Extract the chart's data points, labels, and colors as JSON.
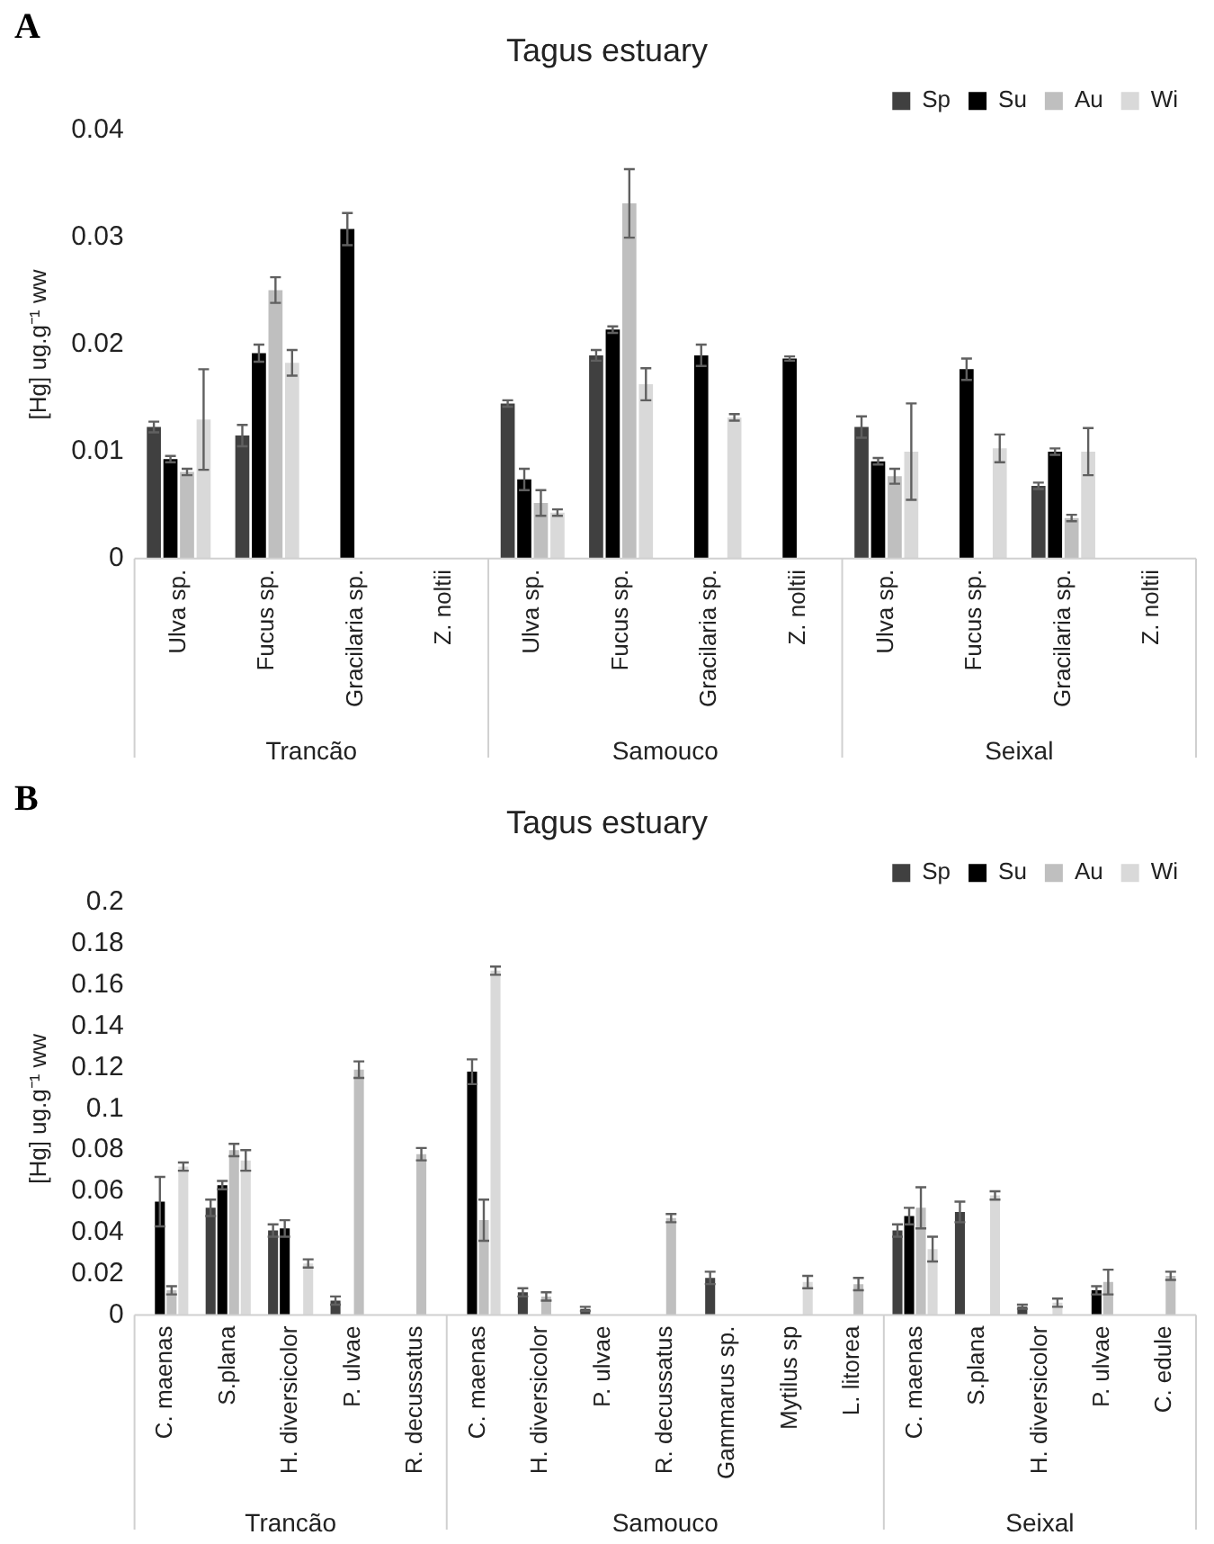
{
  "chart_data": [
    {
      "type": "bar",
      "title": "Tagus estuary",
      "ylabel": "[Hg] ug.g⁻¹ ww",
      "legend": "top right",
      "grid": false,
      "categories": [
        "Ulva sp.",
        "Fucus sp.",
        "Gracilaria sp.",
        "Z. noltii",
        "Ulva sp.",
        "Fucus sp.",
        "Gracilaria sp.",
        "Z. noltii",
        "Ulva sp.",
        "Fucus sp.",
        "Gracilaria sp.",
        "Z. noltii"
      ],
      "annotations": [
        "A",
        "Trancão",
        "Samouco",
        "Seixal"
      ],
      "ylim": [
        0,
        0.04
      ],
      "yticks": [
        0,
        0.01,
        0.02,
        0.03,
        0.04
      ],
      "series": [
        {
          "name": "Sp",
          "color": "#404040",
          "values": [
            0.0123,
            0.0115,
            null,
            null,
            0.0145,
            0.019,
            null,
            null,
            0.0123,
            null,
            0.0068,
            null
          ],
          "errors": [
            0.0005,
            0.001,
            null,
            null,
            0.0003,
            0.0005,
            null,
            null,
            0.001,
            null,
            0.0003,
            null
          ]
        },
        {
          "name": "Su",
          "color": "#000000",
          "values": [
            0.0093,
            0.0192,
            0.0308,
            null,
            0.0074,
            0.0214,
            0.019,
            0.0187,
            0.0091,
            0.0177,
            0.01,
            null
          ],
          "errors": [
            0.0003,
            0.0008,
            0.0015,
            null,
            0.001,
            0.0003,
            0.001,
            0.0002,
            0.0003,
            0.001,
            0.0003,
            null
          ]
        },
        {
          "name": "Au",
          "color": "#bfbfbf",
          "values": [
            0.0081,
            0.0251,
            null,
            null,
            0.0052,
            0.0332,
            null,
            null,
            0.0077,
            null,
            0.0038,
            null
          ],
          "errors": [
            0.0003,
            0.0012,
            null,
            null,
            0.0012,
            0.0032,
            null,
            null,
            0.0007,
            null,
            0.0003,
            null
          ]
        },
        {
          "name": "Wi",
          "color": "#d9d9d9",
          "values": [
            0.013,
            0.0183,
            null,
            null,
            0.0043,
            0.0163,
            0.0132,
            null,
            0.01,
            0.0103,
            0.01,
            null
          ],
          "errors": [
            0.0047,
            0.0012,
            null,
            null,
            0.0003,
            0.0015,
            0.0003,
            null,
            0.0045,
            0.0013,
            0.0022,
            null
          ]
        }
      ]
    },
    {
      "type": "bar",
      "title": "Tagus estuary",
      "ylabel": "[Hg] ug.g⁻¹ ww",
      "legend": "top right",
      "grid": false,
      "categories": [
        "C. maenas",
        "S.plana",
        "H. diversicolor",
        "P. ulvae",
        "R. decussatus",
        "C. maenas",
        "H. diversicolor",
        "P. ulvae",
        "R. decussatus",
        "Gammarus sp.",
        "Mytilus sp",
        "L. litorea",
        "C. maenas",
        "S.plana",
        "H. diversicolor",
        "P. ulvae",
        "C. edule"
      ],
      "annotations": [
        "B",
        "Trancão",
        "Samouco",
        "Seixal"
      ],
      "ylim": [
        0,
        0.2
      ],
      "yticks": [
        0,
        0.02,
        0.04,
        0.06,
        0.08,
        0.1,
        0.12,
        0.14,
        0.16,
        0.18,
        0.2
      ],
      "series": [
        {
          "name": "Sp",
          "color": "#404040",
          "values": [
            null,
            0.052,
            0.041,
            0.007,
            null,
            null,
            0.011,
            0.003,
            null,
            0.018,
            null,
            null,
            0.041,
            0.05,
            0.004,
            null,
            null
          ],
          "errors": [
            null,
            0.004,
            0.003,
            0.002,
            null,
            null,
            0.002,
            0.001,
            null,
            0.003,
            null,
            null,
            0.003,
            0.005,
            0.001,
            null,
            null
          ]
        },
        {
          "name": "Su",
          "color": "#000000",
          "values": [
            0.055,
            0.063,
            0.042,
            null,
            null,
            0.118,
            null,
            null,
            null,
            null,
            null,
            null,
            0.048,
            null,
            null,
            0.012,
            null
          ],
          "errors": [
            0.012,
            0.002,
            0.004,
            null,
            null,
            0.006,
            null,
            null,
            null,
            null,
            null,
            null,
            0.004,
            null,
            null,
            0.002,
            null
          ]
        },
        {
          "name": "Au",
          "color": "#bfbfbf",
          "values": [
            0.012,
            0.08,
            null,
            0.119,
            0.078,
            0.046,
            0.009,
            null,
            0.047,
            null,
            null,
            0.015,
            0.052,
            null,
            null,
            0.016,
            0.019
          ],
          "errors": [
            0.002,
            0.003,
            null,
            0.004,
            0.003,
            0.01,
            0.002,
            null,
            0.002,
            null,
            null,
            0.003,
            0.01,
            null,
            null,
            0.006,
            0.002
          ]
        },
        {
          "name": "Wi",
          "color": "#d9d9d9",
          "values": [
            0.072,
            0.075,
            0.025,
            null,
            null,
            0.167,
            null,
            null,
            null,
            null,
            0.016,
            null,
            0.032,
            0.058,
            0.006,
            null,
            null
          ],
          "errors": [
            0.002,
            0.005,
            0.002,
            null,
            null,
            0.002,
            null,
            null,
            null,
            null,
            0.003,
            null,
            0.006,
            0.002,
            0.002,
            null,
            null
          ]
        }
      ]
    }
  ]
}
